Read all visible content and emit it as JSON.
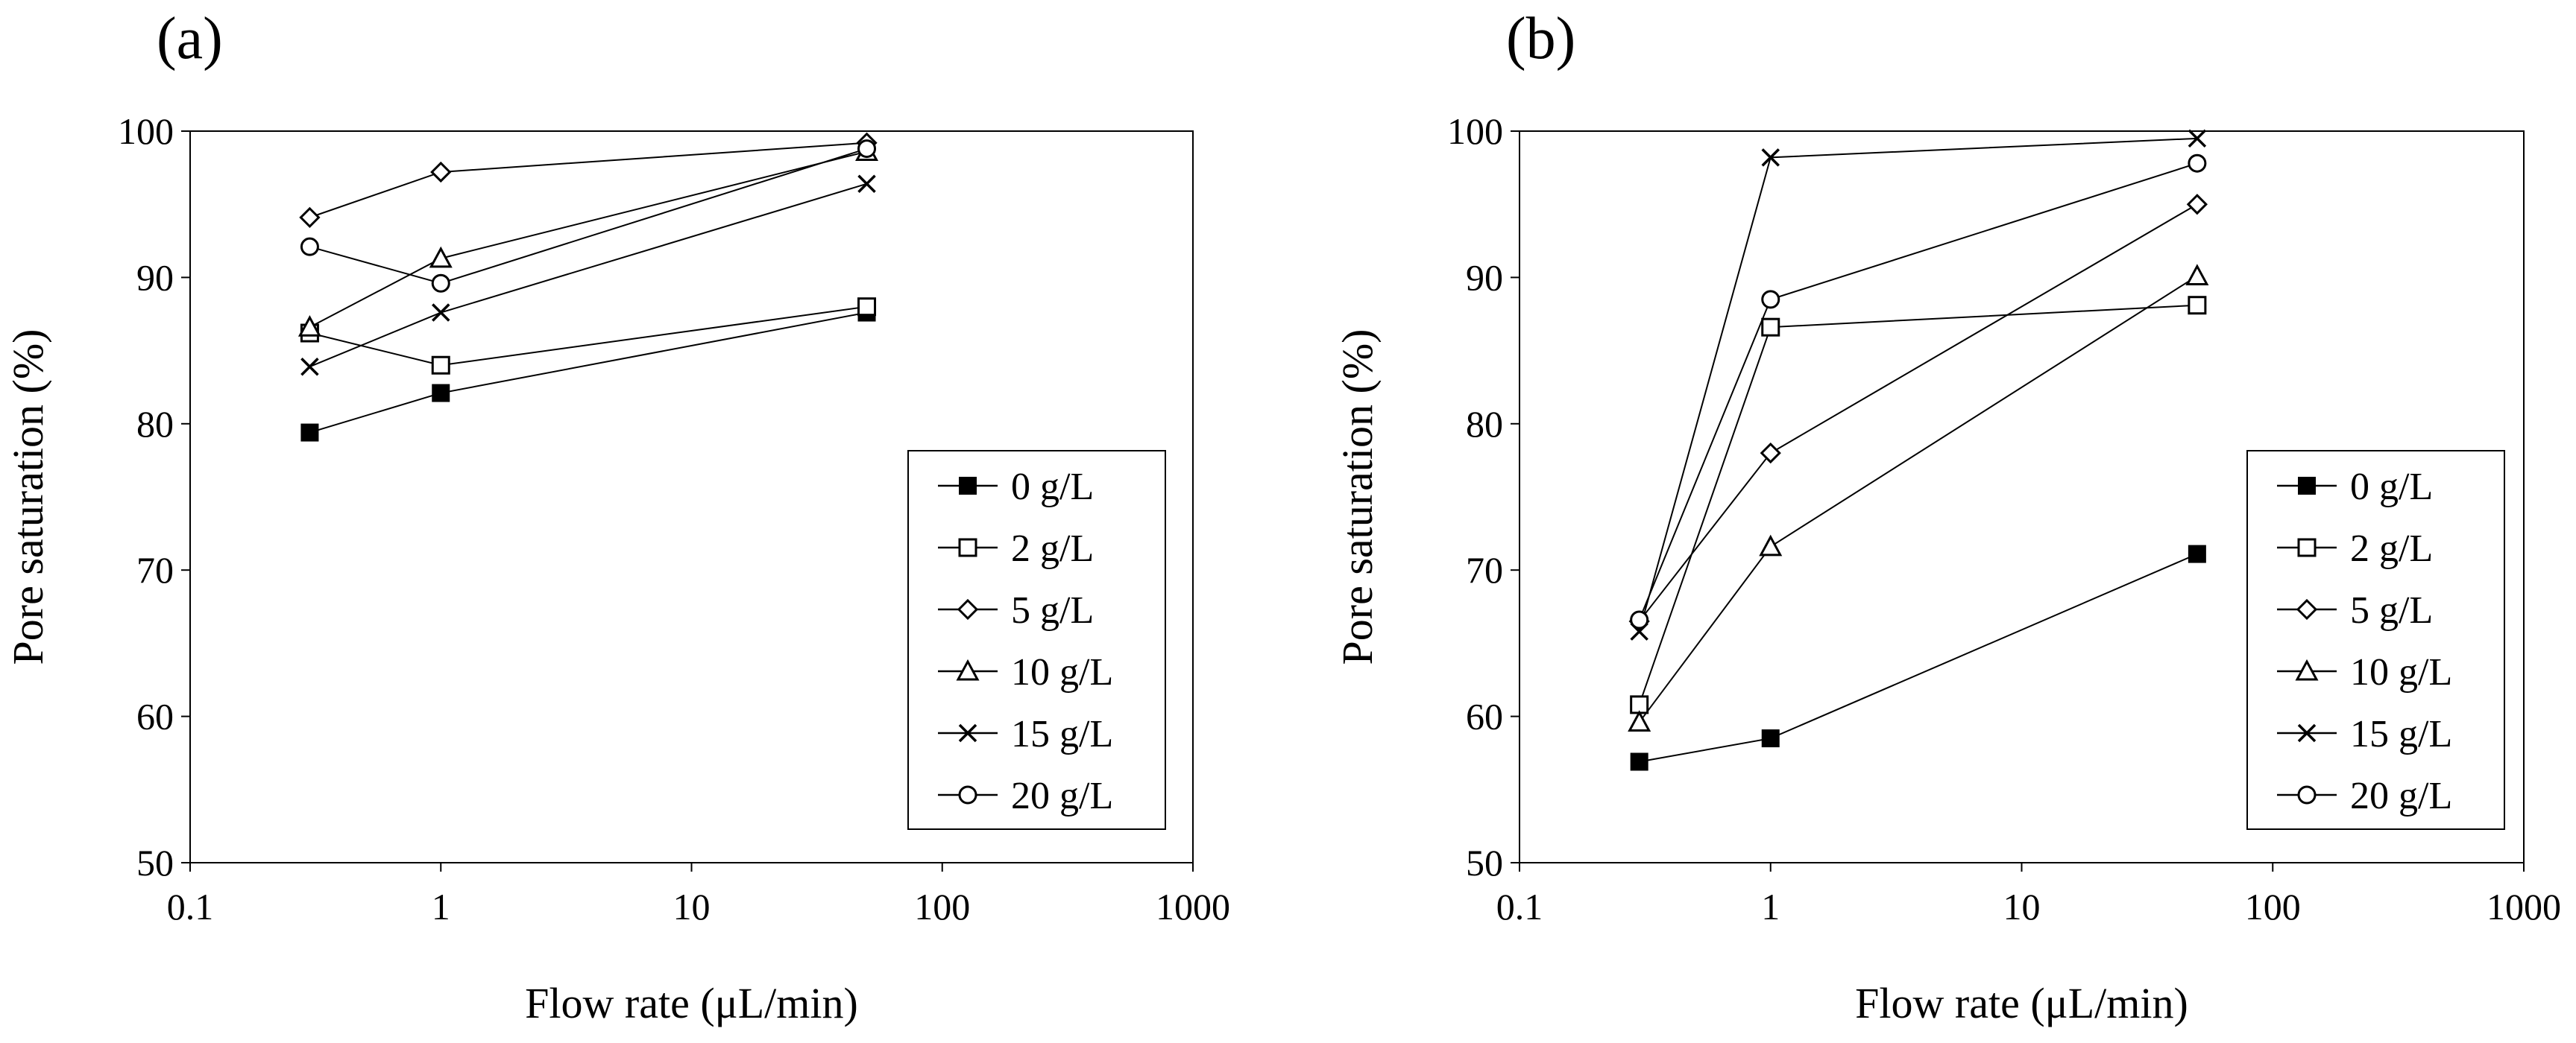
{
  "chart_data": [
    {
      "type": "line",
      "panel_label": "(a)",
      "xlabel": "Flow rate (μL/min)",
      "ylabel": "Pore saturation (%)",
      "xscale": "log",
      "xlim": [
        0.1,
        1000
      ],
      "ylim": [
        50,
        100
      ],
      "xticks": [
        0.1,
        1,
        10,
        100,
        1000
      ],
      "xtick_labels": [
        "0.1",
        "1",
        "10",
        "100",
        "1000"
      ],
      "yticks": [
        50,
        60,
        70,
        80,
        90,
        100
      ],
      "ytick_labels": [
        "50",
        "60",
        "70",
        "80",
        "90",
        "100"
      ],
      "grid": false,
      "legend_position": "bottom-right",
      "x": [
        0.3,
        1,
        50
      ],
      "series": [
        {
          "name": "0 g/L",
          "marker": "filled-square",
          "values": [
            79.4,
            82.1,
            87.6
          ]
        },
        {
          "name": "2 g/L",
          "marker": "open-square",
          "values": [
            86.2,
            84.0,
            88.0
          ]
        },
        {
          "name": "5 g/L",
          "marker": "open-diamond",
          "values": [
            94.1,
            97.2,
            99.2
          ]
        },
        {
          "name": "10 g/L",
          "marker": "open-triangle",
          "values": [
            86.6,
            91.3,
            98.6
          ]
        },
        {
          "name": "15 g/L",
          "marker": "cross",
          "values": [
            83.9,
            87.6,
            96.4
          ]
        },
        {
          "name": "20 g/L",
          "marker": "open-circle",
          "values": [
            92.1,
            89.6,
            98.8
          ]
        }
      ]
    },
    {
      "type": "line",
      "panel_label": "(b)",
      "xlabel": "Flow rate (μL/min)",
      "ylabel": "Pore saturation (%)",
      "xscale": "log",
      "xlim": [
        0.1,
        1000
      ],
      "ylim": [
        50,
        100
      ],
      "xticks": [
        0.1,
        1,
        10,
        100,
        1000
      ],
      "xtick_labels": [
        "0.1",
        "1",
        "10",
        "100",
        "1000"
      ],
      "yticks": [
        50,
        60,
        70,
        80,
        90,
        100
      ],
      "ytick_labels": [
        "50",
        "60",
        "70",
        "80",
        "90",
        "100"
      ],
      "grid": false,
      "legend_position": "bottom-right",
      "x": [
        0.3,
        1,
        50
      ],
      "series": [
        {
          "name": "0 g/L",
          "marker": "filled-square",
          "values": [
            56.9,
            58.5,
            71.1
          ]
        },
        {
          "name": "2 g/L",
          "marker": "open-square",
          "values": [
            60.8,
            86.6,
            88.1
          ]
        },
        {
          "name": "5 g/L",
          "marker": "open-diamond",
          "values": [
            66.5,
            78.0,
            95.0
          ]
        },
        {
          "name": "10 g/L",
          "marker": "open-triangle",
          "values": [
            59.6,
            71.6,
            90.1
          ]
        },
        {
          "name": "15 g/L",
          "marker": "cross",
          "values": [
            65.8,
            98.2,
            99.5
          ]
        },
        {
          "name": "20 g/L",
          "marker": "open-circle",
          "values": [
            66.6,
            88.5,
            97.8
          ]
        }
      ]
    }
  ]
}
